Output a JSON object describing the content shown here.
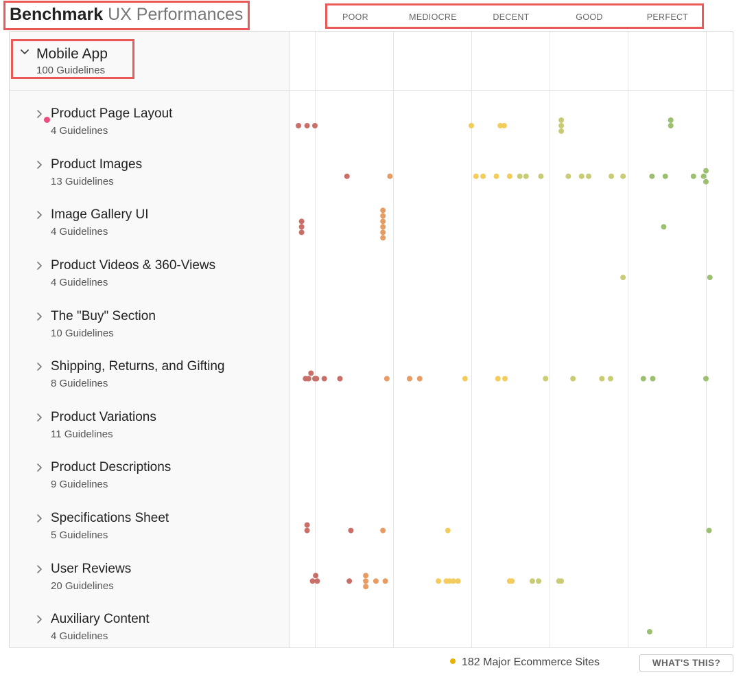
{
  "header": {
    "title_bold": "Benchmark",
    "title_light": "UX Performances",
    "ratings": [
      "POOR",
      "MEDIOCRE",
      "DECENT",
      "GOOD",
      "PERFECT"
    ]
  },
  "section": {
    "title": "Mobile App",
    "subtitle": "100 Guidelines",
    "icon": "chevron-down-icon"
  },
  "categories": [
    {
      "title": "Product Page Layout",
      "subtitle": "4 Guidelines",
      "icon": "chevron-right-icon"
    },
    {
      "title": "Product Images",
      "subtitle": "13 Guidelines",
      "icon": "chevron-right-icon"
    },
    {
      "title": "Image Gallery UI",
      "subtitle": "4 Guidelines",
      "icon": "chevron-right-icon"
    },
    {
      "title": "Product Videos & 360-Views",
      "subtitle": "4 Guidelines",
      "icon": "chevron-right-icon"
    },
    {
      "title": "The \"Buy\" Section",
      "subtitle": "10 Guidelines",
      "icon": "chevron-right-icon"
    },
    {
      "title": "Shipping, Returns, and Gifting",
      "subtitle": "8 Guidelines",
      "icon": "chevron-right-icon"
    },
    {
      "title": "Product Variations",
      "subtitle": "11 Guidelines",
      "icon": "chevron-right-icon"
    },
    {
      "title": "Product Descriptions",
      "subtitle": "9 Guidelines",
      "icon": "chevron-right-icon"
    },
    {
      "title": "Specifications Sheet",
      "subtitle": "5 Guidelines",
      "icon": "chevron-right-icon"
    },
    {
      "title": "User Reviews",
      "subtitle": "20 Guidelines",
      "icon": "chevron-right-icon"
    },
    {
      "title": "Auxiliary Content",
      "subtitle": "4 Guidelines",
      "icon": "chevron-right-icon"
    }
  ],
  "footer": {
    "legend": "182 Major Ecommerce Sites",
    "whats_this": "WHAT'S THIS?"
  },
  "colors": {
    "highlight_border": "#ea5858",
    "legend_dot": "#e9b200",
    "poor": "#c96f6a",
    "mediocre": "#e69c64",
    "decent": "#f2cc5c",
    "good": "#c9cc74",
    "perfect": "#9dbf72"
  },
  "chart_data": {
    "type": "scatter",
    "description_scale": "score 0 = Poor, 1 = Mediocre, 2 = Decent, 3 = Good, 4 = Perfect",
    "xlim": [
      -0.33,
      4.0
    ],
    "series": [
      {
        "category": "Product Page Layout",
        "points": [
          -0.21,
          -0.1,
          0.0,
          2.0,
          2.37,
          2.42,
          3.15,
          3.15,
          3.15,
          4.55,
          4.55
        ]
      },
      {
        "category": "Product Images",
        "points": [
          0.41,
          0.96,
          2.06,
          2.15,
          2.32,
          2.49,
          2.62,
          2.7,
          2.89,
          3.24,
          3.41,
          3.5,
          3.79,
          3.94,
          4.31,
          4.48,
          4.84,
          4.97,
          5.0,
          5.0
        ]
      },
      {
        "category": "Image Gallery UI",
        "points": [
          -0.17,
          -0.17,
          -0.17,
          0.87,
          0.87,
          0.87,
          0.87,
          0.87,
          0.87,
          4.46
        ]
      },
      {
        "category": "Product Videos & 360-Views",
        "points": [
          3.94,
          5.05
        ]
      },
      {
        "category": "The \"Buy\" Section",
        "points": []
      },
      {
        "category": "Shipping, Returns, and Gifting",
        "points": [
          -0.12,
          -0.08,
          -0.05,
          0.0,
          0.02,
          0.12,
          0.32,
          0.92,
          1.21,
          1.34,
          1.92,
          2.34,
          2.43,
          2.95,
          3.3,
          3.67,
          3.78,
          4.2,
          4.32,
          5.0
        ]
      },
      {
        "category": "Product Variations",
        "points": []
      },
      {
        "category": "Product Descriptions",
        "points": []
      },
      {
        "category": "Specifications Sheet",
        "points": [
          -0.1,
          -0.1,
          0.46,
          0.87,
          1.7,
          5.04
        ]
      },
      {
        "category": "User Reviews",
        "points": [
          -0.03,
          0.01,
          0.03,
          0.44,
          0.65,
          0.65,
          0.65,
          0.78,
          0.9,
          1.58,
          1.68,
          1.72,
          1.77,
          1.83,
          2.49,
          2.52,
          2.78,
          2.86,
          3.12,
          3.15
        ]
      },
      {
        "category": "Auxiliary Content",
        "points": [
          4.28
        ]
      }
    ]
  }
}
